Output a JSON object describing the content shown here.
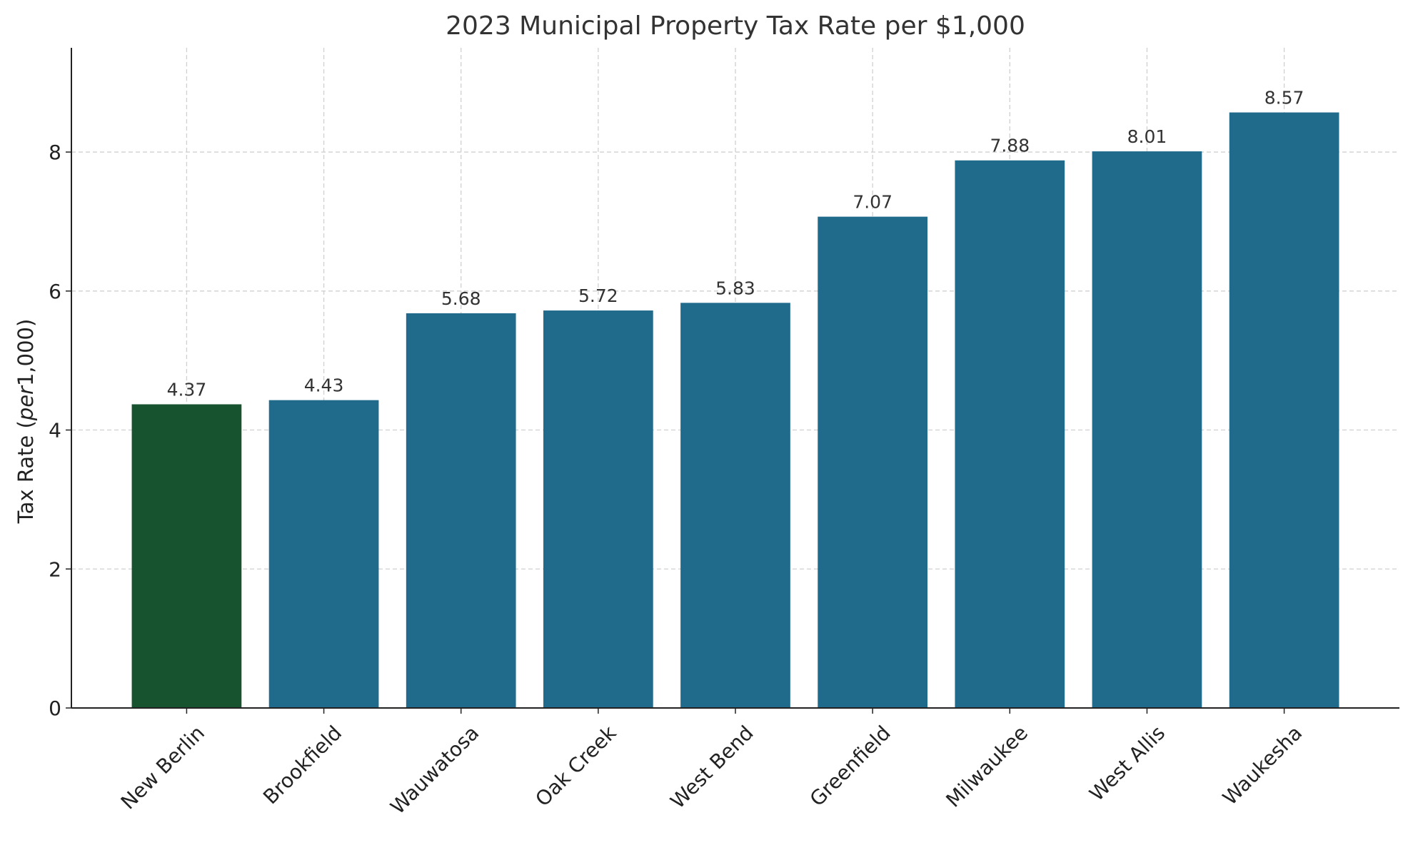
{
  "chart_data": {
    "type": "bar",
    "title": "2023 Municipal Property Tax Rate per $1,000",
    "xlabel": "",
    "ylabel_prefix": "Tax Rate (",
    "ylabel_italic": "per",
    "ylabel_suffix": "1,000)",
    "categories": [
      "New Berlin",
      "Brookfield",
      "Wauwatosa",
      "Oak Creek",
      "West Bend",
      "Greenfield",
      "Milwaukee",
      "West Allis",
      "Waukesha"
    ],
    "values": [
      4.37,
      4.43,
      5.68,
      5.72,
      5.83,
      7.07,
      7.88,
      8.01,
      8.57
    ],
    "data_labels": [
      "4.37",
      "4.43",
      "5.68",
      "5.72",
      "5.83",
      "7.07",
      "7.88",
      "8.01",
      "8.57"
    ],
    "colors": [
      "#17532f",
      "#206a8c",
      "#206a8c",
      "#206a8c",
      "#206a8c",
      "#206a8c",
      "#206a8c",
      "#206a8c",
      "#206a8c"
    ],
    "ylim": [
      0,
      9.5
    ],
    "yticks": [
      0,
      2,
      4,
      6,
      8
    ],
    "ytick_labels": [
      "0",
      "2",
      "4",
      "6",
      "8"
    ],
    "grid": true,
    "grid_style": "dashed",
    "highlight_color": "#17532f",
    "default_color": "#206a8c"
  }
}
